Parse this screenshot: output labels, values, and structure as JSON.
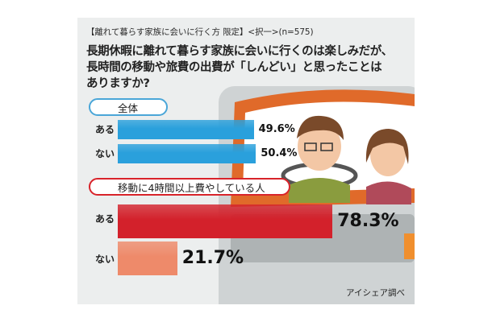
{
  "header": {
    "subtitle": "【離れて暮らす家族に会いに行く方 限定】<択一>(n=575)",
    "question_line1": "長期休暇に離れて暮らす家族に会いに行くのは楽しみだが、",
    "question_line2": "長時間の移動や旅費の出費が「しんどい」と思ったことは",
    "question_line3": "ありますか?"
  },
  "colors": {
    "blue": "#2aa0dc",
    "red": "#d3212b",
    "salmon": "#ee8a6a",
    "background": "#eceeee"
  },
  "chart_data": [
    {
      "type": "bar",
      "title": "全体",
      "categories": [
        "ある",
        "ない"
      ],
      "values": [
        49.6,
        50.4
      ],
      "value_labels": [
        "49.6%",
        "50.4%"
      ]
    },
    {
      "type": "bar",
      "title": "移動に4時間以上費やしている人",
      "categories": [
        "ある",
        "ない"
      ],
      "values": [
        78.3,
        21.7
      ],
      "value_labels": [
        "78.3%",
        "21.7%"
      ]
    }
  ],
  "source": "アイシェア調べ"
}
